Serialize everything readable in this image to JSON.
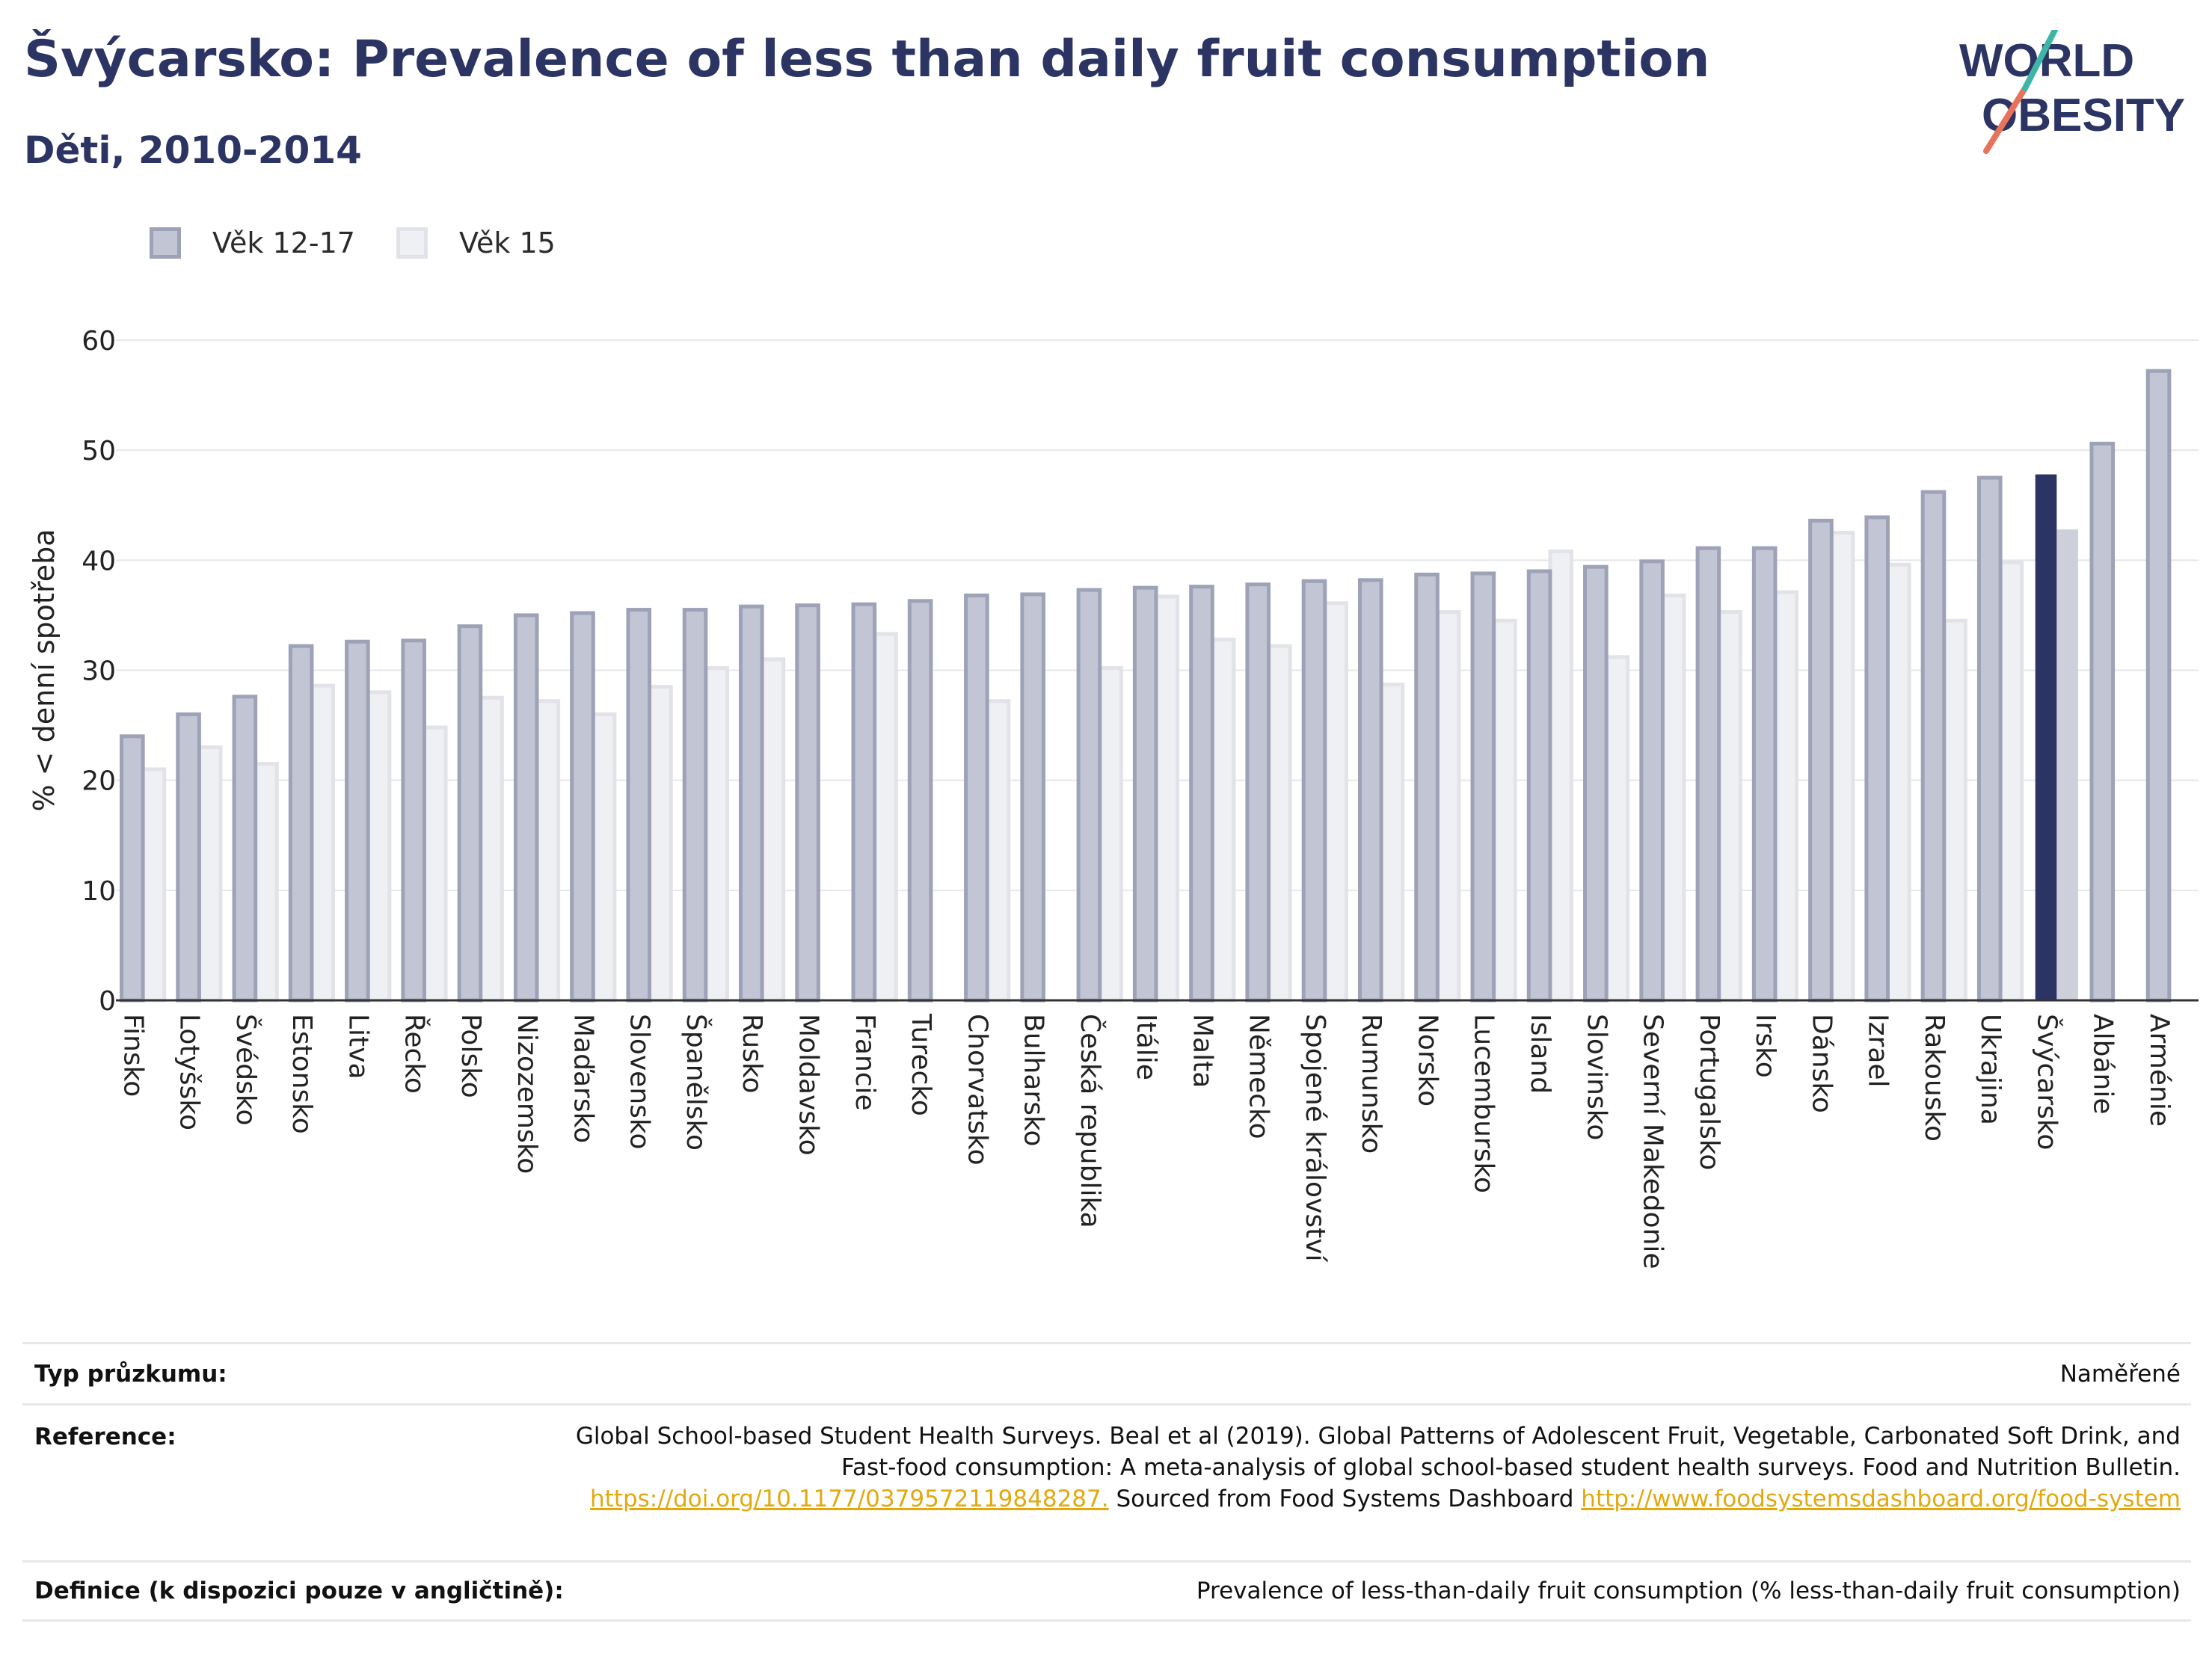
{
  "header": {
    "title": "Švýcarsko: Prevalence of less than daily fruit consumption",
    "subtitle": "Děti, 2010-2014"
  },
  "logo": {
    "line1": "WORLD",
    "line2": "OBESITY"
  },
  "legend": [
    {
      "label": "Věk 12-17",
      "color": "#c2c5d3"
    },
    {
      "label": "Věk 15",
      "color": "#eff0f3"
    }
  ],
  "chart_data": {
    "type": "bar",
    "ylabel": "% < denní spotřeba",
    "xlabel": "",
    "ylim": [
      0,
      60
    ],
    "yticks": [
      0,
      10,
      20,
      30,
      40,
      50,
      60
    ],
    "grid": true,
    "legend_position": "top-left",
    "highlight_category": "Švýcarsko",
    "colors": {
      "series1": "#c2c5d3",
      "series1_edge": "#9ea2b7",
      "series2": "#eff0f3",
      "series2_edge": "#e2e3e8",
      "highlight1": "#2b3463",
      "highlight2": "#cdd0da"
    },
    "categories": [
      "Finsko",
      "Lotyšsko",
      "Švédsko",
      "Estonsko",
      "Litva",
      "Řecko",
      "Polsko",
      "Nizozemsko",
      "Maďarsko",
      "Slovensko",
      "Španělsko",
      "Rusko",
      "Moldavsko",
      "Francie",
      "Turecko",
      "Chorvatsko",
      "Bulharsko",
      "Česká republika",
      "Itálie",
      "Malta",
      "Německo",
      "Spojené království",
      "Rumunsko",
      "Norsko",
      "Lucembursko",
      "Island",
      "Slovinsko",
      "Severní Makedonie",
      "Portugalsko",
      "Irsko",
      "Dánsko",
      "Izrael",
      "Rakousko",
      "Ukrajina",
      "Švýcarsko",
      "Albánie",
      "Arménie"
    ],
    "series": [
      {
        "name": "Věk 12-17",
        "values": [
          24.0,
          26.0,
          27.6,
          32.2,
          32.6,
          32.7,
          34.0,
          35.0,
          35.2,
          35.5,
          35.5,
          35.8,
          35.9,
          36.0,
          36.3,
          36.8,
          36.9,
          37.3,
          37.5,
          37.6,
          37.8,
          38.1,
          38.2,
          38.7,
          38.8,
          39.0,
          39.4,
          39.9,
          41.1,
          41.1,
          43.6,
          43.9,
          46.2,
          47.5,
          47.8,
          50.6,
          57.2
        ]
      },
      {
        "name": "Věk 15",
        "values": [
          21.0,
          23.0,
          21.5,
          28.6,
          28.0,
          24.8,
          27.5,
          27.2,
          26.0,
          28.5,
          30.2,
          31.0,
          null,
          33.3,
          null,
          27.2,
          null,
          30.2,
          36.7,
          32.8,
          32.2,
          36.1,
          28.7,
          35.3,
          34.5,
          40.8,
          31.2,
          36.8,
          35.3,
          37.1,
          42.5,
          39.6,
          34.5,
          39.8,
          42.8,
          null,
          null
        ]
      }
    ]
  },
  "footer": {
    "rows": [
      {
        "label": "Typ průzkumu:",
        "value": "Naměřené"
      },
      {
        "label": "Reference:",
        "text1": "Global School-based Student Health Surveys. Beal et al (2019). Global Patterns of Adolescent Fruit, Vegetable, Carbonated Soft Drink, and Fast-food consumption: A meta-analysis of global school-based student health surveys. Food and Nutrition Bulletin.",
        "link1": "https://doi.org/10.1177/0379572119848287.",
        "text2": " Sourced from Food Systems Dashboard ",
        "link2": "http://www.foodsystemsdashboard.org/food-system"
      },
      {
        "label": "Definice (k dispozici pouze v angličtině):",
        "value": "Prevalence of less-than-daily fruit consumption (% less-than-daily fruit consumption)"
      }
    ]
  }
}
